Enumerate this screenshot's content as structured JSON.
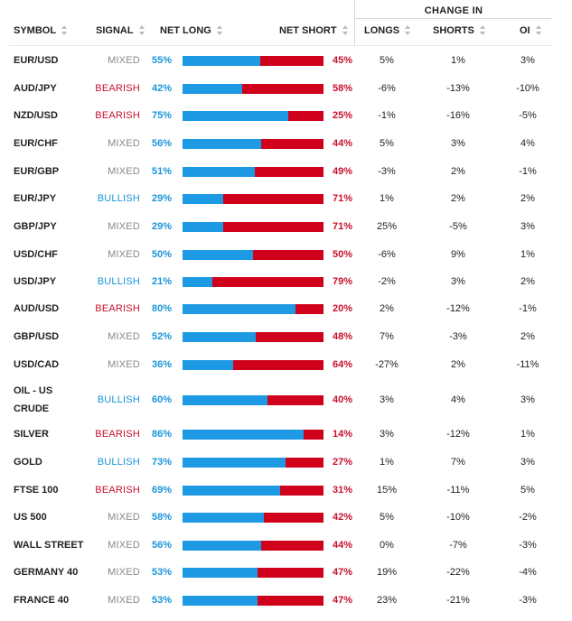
{
  "header": {
    "change_group": "CHANGE IN",
    "symbol": "SYMBOL",
    "signal": "SIGNAL",
    "net_long": "NET LONG",
    "net_short": "NET SHORT",
    "longs": "LONGS",
    "shorts": "SHORTS",
    "oi": "OI"
  },
  "colors": {
    "long": "#1d9ae3",
    "short": "#d0021b",
    "mixed": "#888888"
  },
  "rows": [
    {
      "symbol": "EUR/USD",
      "signal": "MIXED",
      "net_long": "55%",
      "net_short": "45%",
      "long_value": 55,
      "longs": "5%",
      "shorts": "1%",
      "oi": "3%"
    },
    {
      "symbol": "AUD/JPY",
      "signal": "BEARISH",
      "net_long": "42%",
      "net_short": "58%",
      "long_value": 42,
      "longs": "-6%",
      "shorts": "-13%",
      "oi": "-10%"
    },
    {
      "symbol": "NZD/USD",
      "signal": "BEARISH",
      "net_long": "75%",
      "net_short": "25%",
      "long_value": 75,
      "longs": "-1%",
      "shorts": "-16%",
      "oi": "-5%"
    },
    {
      "symbol": "EUR/CHF",
      "signal": "MIXED",
      "net_long": "56%",
      "net_short": "44%",
      "long_value": 56,
      "longs": "5%",
      "shorts": "3%",
      "oi": "4%"
    },
    {
      "symbol": "EUR/GBP",
      "signal": "MIXED",
      "net_long": "51%",
      "net_short": "49%",
      "long_value": 51,
      "longs": "-3%",
      "shorts": "2%",
      "oi": "-1%"
    },
    {
      "symbol": "EUR/JPY",
      "signal": "BULLISH",
      "net_long": "29%",
      "net_short": "71%",
      "long_value": 29,
      "longs": "1%",
      "shorts": "2%",
      "oi": "2%"
    },
    {
      "symbol": "GBP/JPY",
      "signal": "MIXED",
      "net_long": "29%",
      "net_short": "71%",
      "long_value": 29,
      "longs": "25%",
      "shorts": "-5%",
      "oi": "3%"
    },
    {
      "symbol": "USD/CHF",
      "signal": "MIXED",
      "net_long": "50%",
      "net_short": "50%",
      "long_value": 50,
      "longs": "-6%",
      "shorts": "9%",
      "oi": "1%"
    },
    {
      "symbol": "USD/JPY",
      "signal": "BULLISH",
      "net_long": "21%",
      "net_short": "79%",
      "long_value": 21,
      "longs": "-2%",
      "shorts": "3%",
      "oi": "2%"
    },
    {
      "symbol": "AUD/USD",
      "signal": "BEARISH",
      "net_long": "80%",
      "net_short": "20%",
      "long_value": 80,
      "longs": "2%",
      "shorts": "-12%",
      "oi": "-1%"
    },
    {
      "symbol": "GBP/USD",
      "signal": "MIXED",
      "net_long": "52%",
      "net_short": "48%",
      "long_value": 52,
      "longs": "7%",
      "shorts": "-3%",
      "oi": "2%"
    },
    {
      "symbol": "USD/CAD",
      "signal": "MIXED",
      "net_long": "36%",
      "net_short": "64%",
      "long_value": 36,
      "longs": "-27%",
      "shorts": "2%",
      "oi": "-11%"
    },
    {
      "symbol": "OIL - US CRUDE",
      "signal": "BULLISH",
      "net_long": "60%",
      "net_short": "40%",
      "long_value": 60,
      "longs": "3%",
      "shorts": "4%",
      "oi": "3%"
    },
    {
      "symbol": "SILVER",
      "signal": "BEARISH",
      "net_long": "86%",
      "net_short": "14%",
      "long_value": 86,
      "longs": "3%",
      "shorts": "-12%",
      "oi": "1%"
    },
    {
      "symbol": "GOLD",
      "signal": "BULLISH",
      "net_long": "73%",
      "net_short": "27%",
      "long_value": 73,
      "longs": "1%",
      "shorts": "7%",
      "oi": "3%"
    },
    {
      "symbol": "FTSE 100",
      "signal": "BEARISH",
      "net_long": "69%",
      "net_short": "31%",
      "long_value": 69,
      "longs": "15%",
      "shorts": "-11%",
      "oi": "5%"
    },
    {
      "symbol": "US 500",
      "signal": "MIXED",
      "net_long": "58%",
      "net_short": "42%",
      "long_value": 58,
      "longs": "5%",
      "shorts": "-10%",
      "oi": "-2%"
    },
    {
      "symbol": "WALL STREET",
      "signal": "MIXED",
      "net_long": "56%",
      "net_short": "44%",
      "long_value": 56,
      "longs": "0%",
      "shorts": "-7%",
      "oi": "-3%"
    },
    {
      "symbol": "GERMANY 40",
      "signal": "MIXED",
      "net_long": "53%",
      "net_short": "47%",
      "long_value": 53,
      "longs": "19%",
      "shorts": "-22%",
      "oi": "-4%"
    },
    {
      "symbol": "FRANCE 40",
      "signal": "MIXED",
      "net_long": "53%",
      "net_short": "47%",
      "long_value": 53,
      "longs": "23%",
      "shorts": "-21%",
      "oi": "-3%"
    }
  ]
}
